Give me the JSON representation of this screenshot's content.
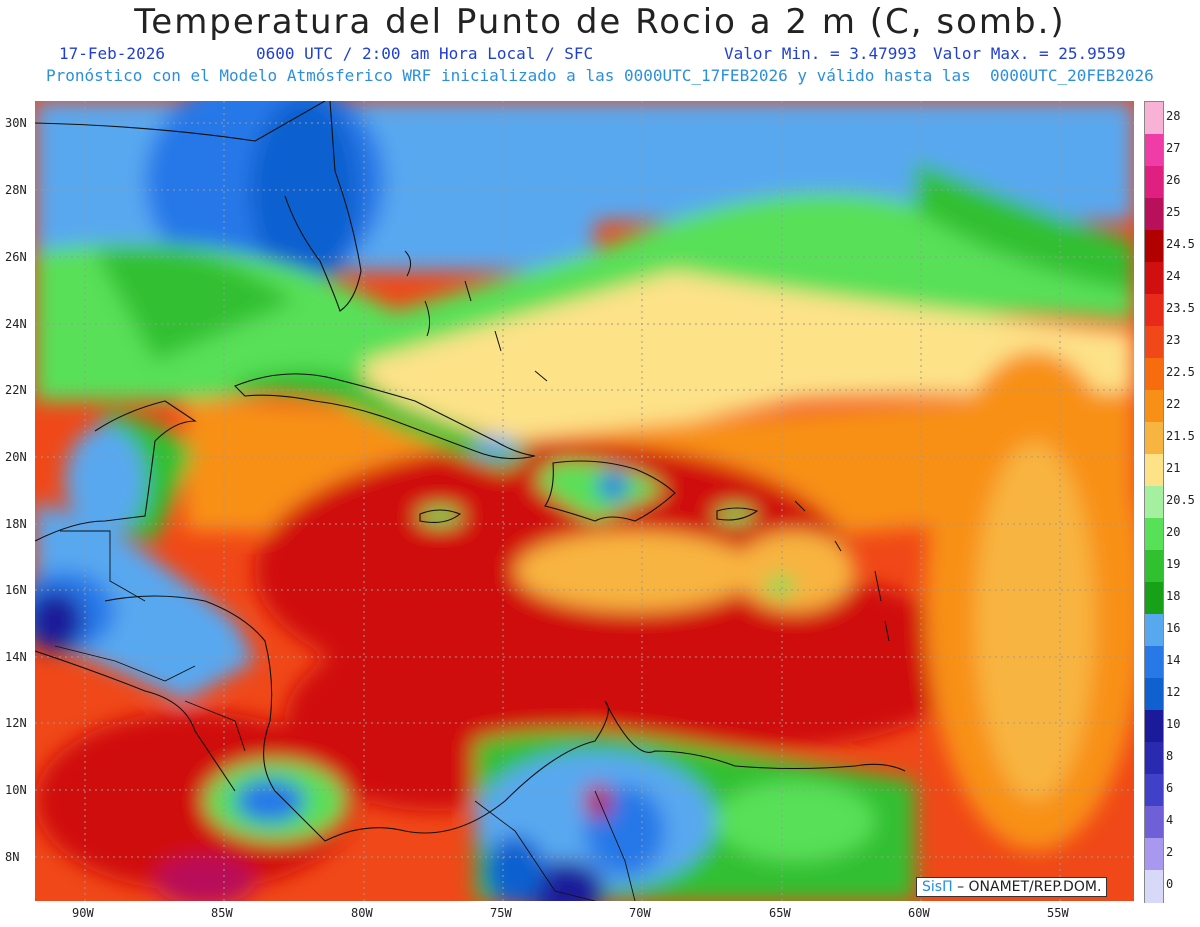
{
  "title": "Temperatura del Punto de Rocio a 2 m (C, somb.)",
  "subtitle": {
    "date": "17-Feb-2026",
    "time": "0600 UTC / 2:00 am Hora Local / SFC",
    "min": "Valor Min. = 3.47993",
    "max": "Valor Max. = 25.9559",
    "forecast": "Pronóstico con el Modelo Atmósferico WRF inicializado a las 0000UTC_17FEB2026 y válido hasta las  0000UTC_20FEB2026"
  },
  "axes": {
    "lat_labels": [
      "30N",
      "28N",
      "26N",
      "24N",
      "22N",
      "20N",
      "18N",
      "16N",
      "14N",
      "12N",
      "10N",
      "8N"
    ],
    "lon_labels": [
      "90W",
      "85W",
      "80W",
      "75W",
      "70W",
      "65W",
      "60W",
      "55W"
    ]
  },
  "legend": {
    "labels": [
      "28",
      "27",
      "26",
      "25",
      "24.5",
      "24",
      "23.5",
      "23",
      "22.5",
      "22",
      "21.5",
      "21",
      "20.5",
      "20",
      "19",
      "18",
      "16",
      "14",
      "12",
      "10",
      "8",
      "6",
      "4",
      "2",
      "0"
    ],
    "colors": [
      "#f7b2d6",
      "#f03ca6",
      "#e02080",
      "#b8105a",
      "#b00000",
      "#d01010",
      "#e82a1a",
      "#f04818",
      "#f86c10",
      "#f89018",
      "#f8b440",
      "#fde288",
      "#a4f0a0",
      "#58e058",
      "#30c030",
      "#18a018",
      "#58a8f0",
      "#2878e8",
      "#1060d0",
      "#1a1a9a",
      "#2a2ab0",
      "#4040c8",
      "#7060d8",
      "#a898f0",
      "#d8d8f8"
    ]
  },
  "credit": {
    "brand": "SisΠ",
    "text": "– ONAMET/REP.DOM."
  }
}
